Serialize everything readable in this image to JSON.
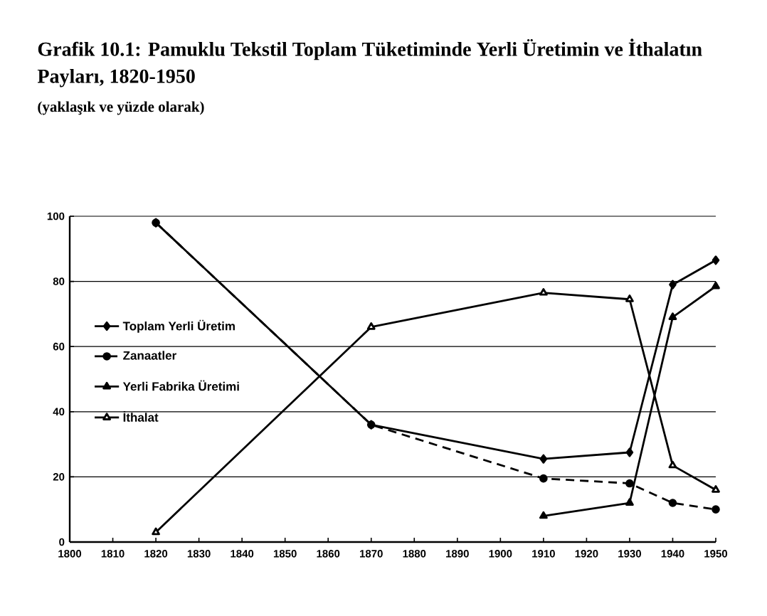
{
  "chart_data": {
    "type": "line",
    "title": "Grafik 10.1: Pamuklu Tekstil Toplam Tüketiminde Yerli Üretimin ve İthalatın Payları, 1820-1950",
    "subtitle": "(yaklaşık ve yüzde olarak)",
    "xlim": [
      1800,
      1950
    ],
    "xticks": [
      1800,
      1810,
      1820,
      1830,
      1840,
      1850,
      1860,
      1870,
      1880,
      1890,
      1900,
      1910,
      1920,
      1930,
      1940,
      1950
    ],
    "ylim": [
      0,
      100
    ],
    "yticks": [
      0,
      20,
      40,
      60,
      80,
      100
    ],
    "grid": "y",
    "legend": "left",
    "series": [
      {
        "name": "Toplam Yerli Üretim",
        "color": "#000000",
        "marker": "diamond",
        "line_style": "solid",
        "x": [
          1820,
          1870,
          1910,
          1930,
          1940,
          1950
        ],
        "values": [
          98,
          36,
          25.5,
          27.5,
          79,
          86.5
        ]
      },
      {
        "name": "Zanaatler",
        "color": "#000000",
        "marker": "circle",
        "line_style": "dashed",
        "x": [
          1820,
          1870,
          1910,
          1930,
          1940,
          1950
        ],
        "values": [
          98,
          36,
          19.5,
          18,
          12,
          10
        ]
      },
      {
        "name": "Yerli Fabrika Üretimi",
        "color": "#000000",
        "marker": "triangle",
        "line_style": "solid",
        "x": [
          1910,
          1930,
          1940,
          1950
        ],
        "values": [
          8,
          12,
          69,
          78.5
        ]
      },
      {
        "name": "İthalat",
        "color": "#000000",
        "marker": "triangle_open",
        "line_style": "solid",
        "x": [
          1820,
          1870,
          1910,
          1930,
          1940,
          1950
        ],
        "values": [
          3,
          66,
          76.5,
          74.5,
          23.5,
          16
        ]
      }
    ]
  }
}
